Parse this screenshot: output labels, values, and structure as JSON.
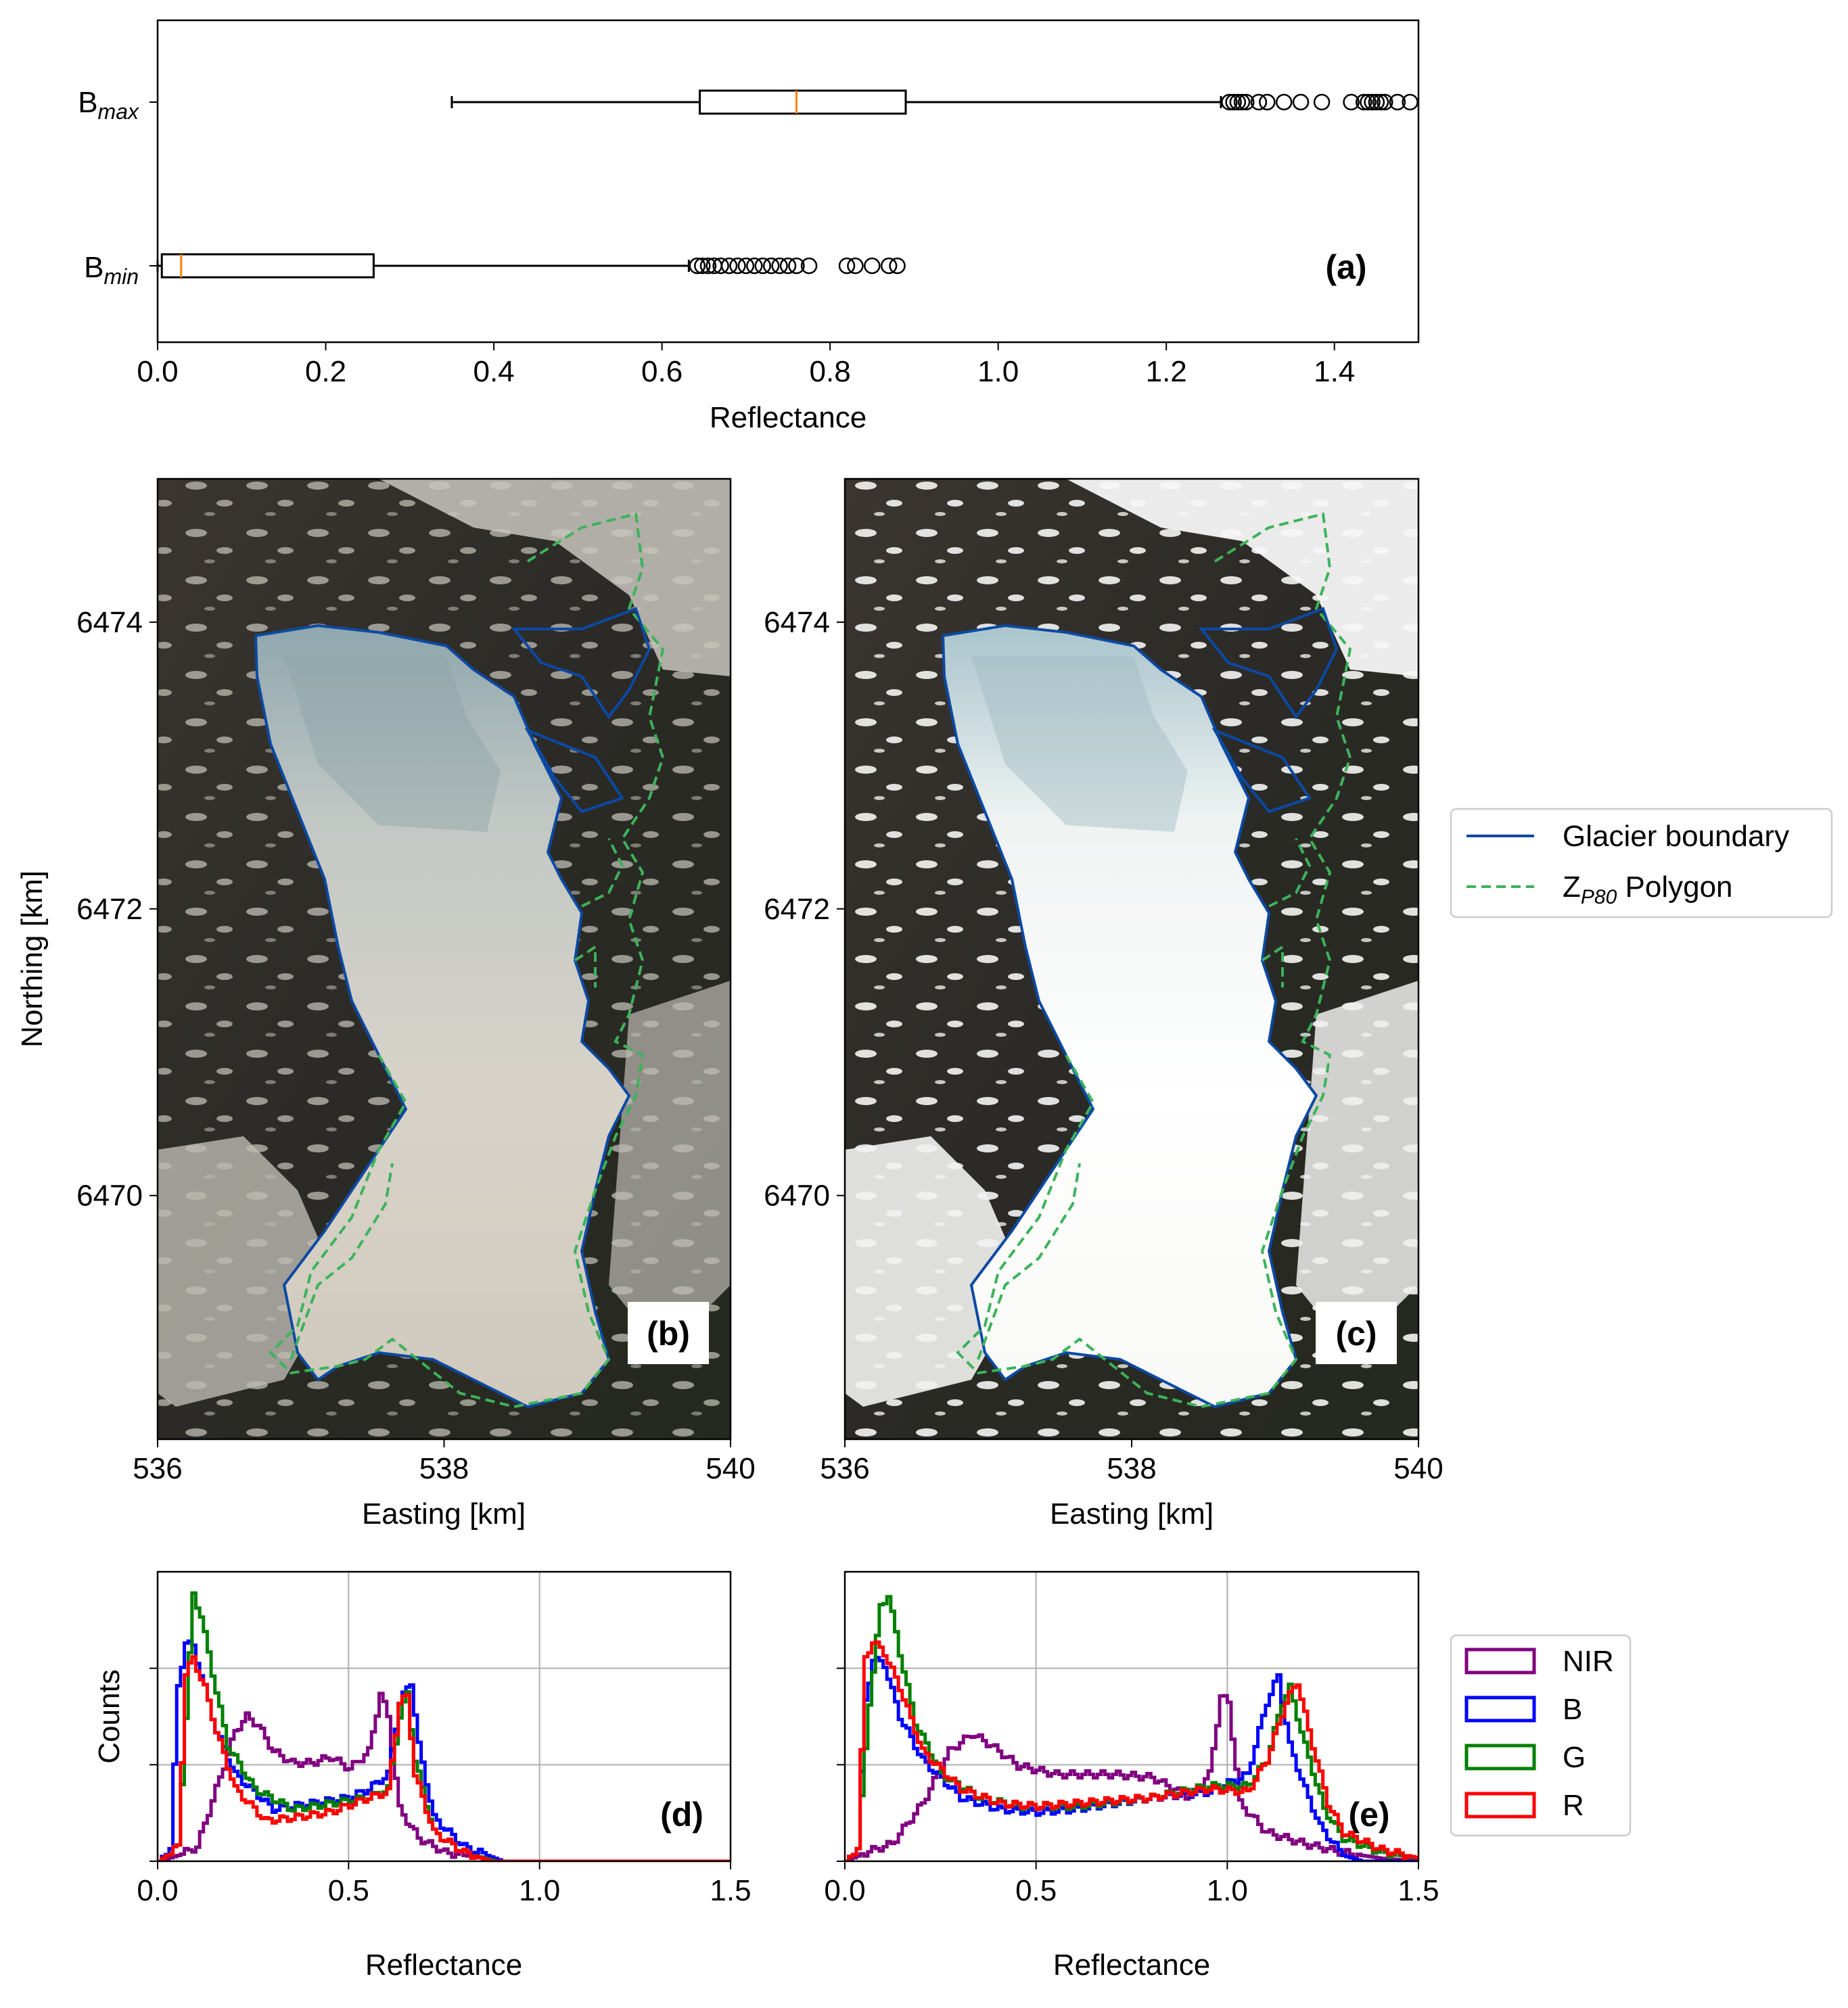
{
  "chart_data": [
    {
      "panel": "(a)",
      "type": "boxplot",
      "orientation": "horizontal",
      "xlabel": "Reflectance",
      "xlim": [
        0.0,
        1.5
      ],
      "xticks": [
        "0.0",
        "0.2",
        "0.4",
        "0.6",
        "0.8",
        "1.0",
        "1.2",
        "1.4"
      ],
      "series": [
        {
          "name_base": "B",
          "name_sub": "max",
          "whisker_low": 0.35,
          "q1": 0.645,
          "median": 0.76,
          "q3": 0.89,
          "whisker_high": 1.265,
          "outliers": [
            1.275,
            1.28,
            1.285,
            1.29,
            1.295,
            1.31,
            1.32,
            1.34,
            1.36,
            1.385,
            1.42,
            1.435,
            1.44,
            1.445,
            1.45,
            1.455,
            1.46,
            1.475,
            1.49
          ]
        },
        {
          "name_base": "B",
          "name_sub": "min",
          "whisker_low": 0.0,
          "q1": 0.005,
          "median": 0.028,
          "q3": 0.257,
          "whisker_high": 0.632,
          "outliers": [
            0.642,
            0.648,
            0.655,
            0.662,
            0.67,
            0.68,
            0.69,
            0.7,
            0.71,
            0.72,
            0.73,
            0.74,
            0.75,
            0.76,
            0.775,
            0.82,
            0.83,
            0.85,
            0.87,
            0.88
          ]
        }
      ]
    },
    {
      "panel": "(b)",
      "type": "map",
      "xlabel": "Easting [km]",
      "ylabel": "Northing [km]",
      "xlim": [
        536,
        540
      ],
      "ylim": [
        6468.3,
        6475.0
      ],
      "xticks": [
        "536",
        "538",
        "540"
      ],
      "yticks": [
        "6470",
        "6472",
        "6474"
      ]
    },
    {
      "panel": "(c)",
      "type": "map",
      "xlabel": "Easting [km]",
      "xlim": [
        536,
        540
      ],
      "ylim": [
        6468.3,
        6475.0
      ],
      "xticks": [
        "536",
        "538",
        "540"
      ],
      "yticks": [
        "6470",
        "6472",
        "6474"
      ]
    },
    {
      "panel": "(d)",
      "type": "histogram-step",
      "xlabel": "Reflectance",
      "ylabel": "Counts",
      "xlim": [
        0.0,
        1.5
      ],
      "xticks": [
        "0.0",
        "0.5",
        "1.0",
        "1.5"
      ],
      "grid": true,
      "series": [
        {
          "name": "NIR",
          "color": "#800080",
          "points": [
            [
              0.0,
              0.0
            ],
            [
              0.05,
              0.02
            ],
            [
              0.1,
              0.05
            ],
            [
              0.15,
              0.25
            ],
            [
              0.2,
              0.45
            ],
            [
              0.23,
              0.5
            ],
            [
              0.26,
              0.47
            ],
            [
              0.3,
              0.38
            ],
            [
              0.35,
              0.34
            ],
            [
              0.4,
              0.34
            ],
            [
              0.45,
              0.36
            ],
            [
              0.5,
              0.32
            ],
            [
              0.55,
              0.38
            ],
            [
              0.58,
              0.58
            ],
            [
              0.6,
              0.5
            ],
            [
              0.63,
              0.18
            ],
            [
              0.68,
              0.08
            ],
            [
              0.75,
              0.03
            ],
            [
              0.85,
              0.01
            ],
            [
              0.9,
              0.0
            ]
          ]
        },
        {
          "name": "B",
          "color": "#0000ff",
          "points": [
            [
              0.0,
              0.0
            ],
            [
              0.03,
              0.05
            ],
            [
              0.05,
              0.6
            ],
            [
              0.07,
              0.76
            ],
            [
              0.09,
              0.74
            ],
            [
              0.12,
              0.6
            ],
            [
              0.15,
              0.45
            ],
            [
              0.2,
              0.3
            ],
            [
              0.3,
              0.18
            ],
            [
              0.4,
              0.2
            ],
            [
              0.5,
              0.22
            ],
            [
              0.55,
              0.25
            ],
            [
              0.6,
              0.3
            ],
            [
              0.63,
              0.55
            ],
            [
              0.66,
              0.62
            ],
            [
              0.68,
              0.4
            ],
            [
              0.72,
              0.15
            ],
            [
              0.8,
              0.05
            ],
            [
              0.9,
              0.0
            ]
          ]
        },
        {
          "name": "G",
          "color": "#008000",
          "points": [
            [
              0.0,
              0.0
            ],
            [
              0.05,
              0.05
            ],
            [
              0.07,
              0.5
            ],
            [
              0.09,
              0.92
            ],
            [
              0.11,
              0.85
            ],
            [
              0.14,
              0.65
            ],
            [
              0.18,
              0.4
            ],
            [
              0.25,
              0.25
            ],
            [
              0.35,
              0.18
            ],
            [
              0.45,
              0.2
            ],
            [
              0.55,
              0.22
            ],
            [
              0.6,
              0.25
            ],
            [
              0.63,
              0.5
            ],
            [
              0.65,
              0.58
            ],
            [
              0.67,
              0.35
            ],
            [
              0.72,
              0.1
            ],
            [
              0.8,
              0.03
            ],
            [
              0.88,
              0.0
            ]
          ]
        },
        {
          "name": "R",
          "color": "#ff0000",
          "points": [
            [
              0.0,
              0.0
            ],
            [
              0.05,
              0.05
            ],
            [
              0.07,
              0.65
            ],
            [
              0.09,
              0.7
            ],
            [
              0.12,
              0.6
            ],
            [
              0.15,
              0.45
            ],
            [
              0.2,
              0.25
            ],
            [
              0.28,
              0.14
            ],
            [
              0.35,
              0.15
            ],
            [
              0.45,
              0.17
            ],
            [
              0.55,
              0.22
            ],
            [
              0.6,
              0.24
            ],
            [
              0.63,
              0.55
            ],
            [
              0.65,
              0.57
            ],
            [
              0.67,
              0.3
            ],
            [
              0.72,
              0.1
            ],
            [
              0.8,
              0.03
            ],
            [
              0.87,
              0.0
            ]
          ]
        }
      ]
    },
    {
      "panel": "(e)",
      "type": "histogram-step",
      "xlabel": "Reflectance",
      "xlim": [
        0.0,
        1.5
      ],
      "xticks": [
        "0.0",
        "0.5",
        "1.0",
        "1.5"
      ],
      "grid": true,
      "series": [
        {
          "name": "NIR",
          "color": "#800080",
          "points": [
            [
              0.0,
              0.0
            ],
            [
              0.05,
              0.03
            ],
            [
              0.12,
              0.06
            ],
            [
              0.2,
              0.2
            ],
            [
              0.27,
              0.38
            ],
            [
              0.33,
              0.44
            ],
            [
              0.38,
              0.4
            ],
            [
              0.45,
              0.33
            ],
            [
              0.55,
              0.3
            ],
            [
              0.7,
              0.3
            ],
            [
              0.8,
              0.29
            ],
            [
              0.9,
              0.22
            ],
            [
              0.95,
              0.3
            ],
            [
              0.98,
              0.57
            ],
            [
              1.0,
              0.55
            ],
            [
              1.03,
              0.2
            ],
            [
              1.1,
              0.1
            ],
            [
              1.2,
              0.06
            ],
            [
              1.3,
              0.03
            ],
            [
              1.4,
              0.01
            ],
            [
              1.5,
              0.0
            ]
          ]
        },
        {
          "name": "B",
          "color": "#0000ff",
          "points": [
            [
              0.0,
              0.0
            ],
            [
              0.03,
              0.05
            ],
            [
              0.05,
              0.55
            ],
            [
              0.07,
              0.7
            ],
            [
              0.1,
              0.68
            ],
            [
              0.14,
              0.5
            ],
            [
              0.2,
              0.35
            ],
            [
              0.3,
              0.22
            ],
            [
              0.4,
              0.18
            ],
            [
              0.5,
              0.17
            ],
            [
              0.6,
              0.18
            ],
            [
              0.8,
              0.22
            ],
            [
              0.95,
              0.24
            ],
            [
              1.05,
              0.3
            ],
            [
              1.1,
              0.55
            ],
            [
              1.13,
              0.64
            ],
            [
              1.16,
              0.4
            ],
            [
              1.2,
              0.25
            ],
            [
              1.24,
              0.12
            ],
            [
              1.3,
              0.02
            ],
            [
              1.35,
              0.0
            ]
          ]
        },
        {
          "name": "G",
          "color": "#008000",
          "points": [
            [
              0.0,
              0.0
            ],
            [
              0.03,
              0.05
            ],
            [
              0.06,
              0.55
            ],
            [
              0.09,
              0.88
            ],
            [
              0.11,
              0.92
            ],
            [
              0.14,
              0.72
            ],
            [
              0.18,
              0.48
            ],
            [
              0.25,
              0.3
            ],
            [
              0.35,
              0.22
            ],
            [
              0.45,
              0.19
            ],
            [
              0.6,
              0.19
            ],
            [
              0.8,
              0.22
            ],
            [
              0.95,
              0.26
            ],
            [
              1.05,
              0.26
            ],
            [
              1.1,
              0.35
            ],
            [
              1.14,
              0.55
            ],
            [
              1.16,
              0.6
            ],
            [
              1.2,
              0.4
            ],
            [
              1.25,
              0.18
            ],
            [
              1.3,
              0.08
            ],
            [
              1.4,
              0.03
            ],
            [
              1.5,
              0.01
            ]
          ]
        },
        {
          "name": "R",
          "color": "#ff0000",
          "points": [
            [
              0.0,
              0.0
            ],
            [
              0.03,
              0.05
            ],
            [
              0.05,
              0.7
            ],
            [
              0.07,
              0.76
            ],
            [
              0.1,
              0.72
            ],
            [
              0.14,
              0.6
            ],
            [
              0.2,
              0.38
            ],
            [
              0.3,
              0.25
            ],
            [
              0.4,
              0.2
            ],
            [
              0.5,
              0.19
            ],
            [
              0.6,
              0.2
            ],
            [
              0.8,
              0.22
            ],
            [
              0.95,
              0.25
            ],
            [
              1.05,
              0.24
            ],
            [
              1.1,
              0.35
            ],
            [
              1.15,
              0.55
            ],
            [
              1.18,
              0.62
            ],
            [
              1.21,
              0.45
            ],
            [
              1.26,
              0.2
            ],
            [
              1.3,
              0.1
            ],
            [
              1.4,
              0.04
            ],
            [
              1.5,
              0.01
            ]
          ]
        }
      ]
    }
  ],
  "legend_map": {
    "entries": [
      {
        "label": "Glacier boundary",
        "color": "#0b49a4",
        "style": "solid"
      },
      {
        "label_base": "Z",
        "label_sub": "P80",
        "label_rest": " Polygon",
        "color": "#3cb35a",
        "style": "dashed"
      }
    ]
  },
  "legend_hist": {
    "entries": [
      {
        "label": "NIR",
        "color": "#800080"
      },
      {
        "label": "B",
        "color": "#0000ff"
      },
      {
        "label": "G",
        "color": "#008000"
      },
      {
        "label": "R",
        "color": "#ff0000"
      }
    ]
  },
  "panel_labels": {
    "a": "(a)",
    "b": "(b)",
    "c": "(c)",
    "d": "(d)",
    "e": "(e)"
  },
  "axis_labels": {
    "a_x": "Reflectance",
    "b_x": "Easting [km]",
    "c_x": "Easting [km]",
    "map_y": "Northing [km]",
    "d_x": "Reflectance",
    "e_x": "Reflectance",
    "d_y": "Counts"
  }
}
